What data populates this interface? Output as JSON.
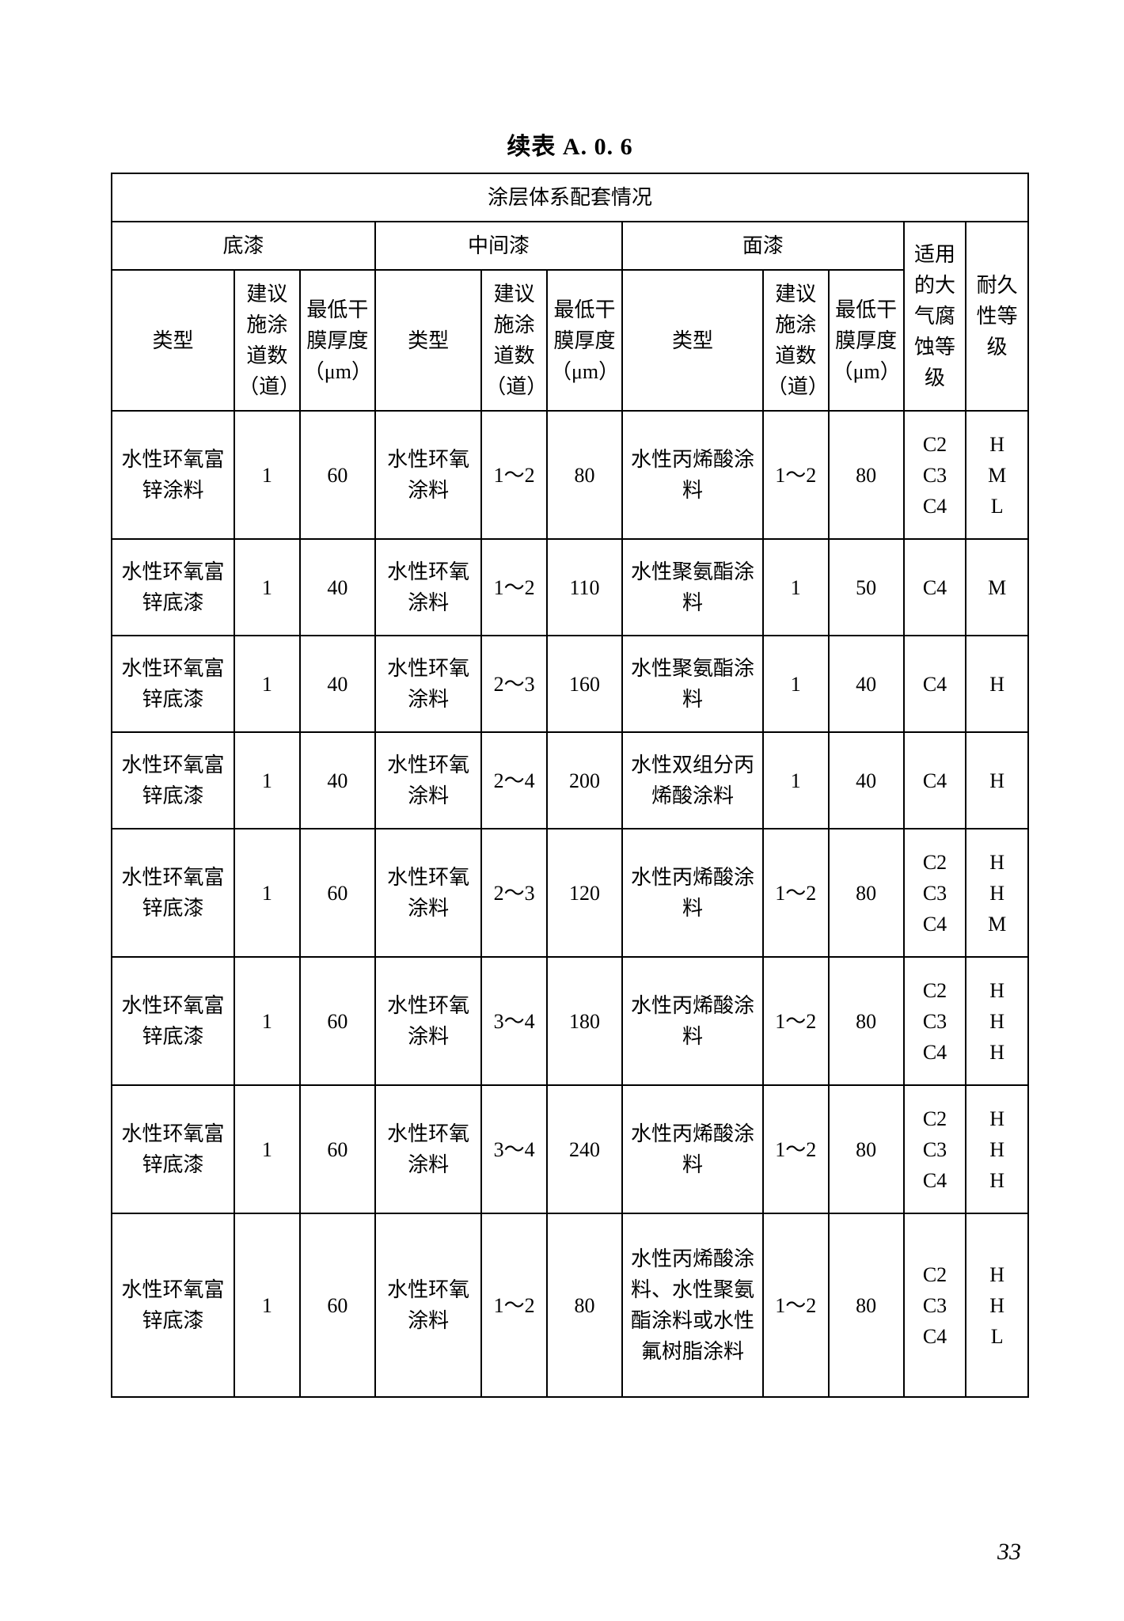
{
  "title": "续表 A. 0. 6",
  "page_number": "33",
  "table": {
    "caption": "涂层体系配套情况",
    "group_headers": {
      "primer": "底漆",
      "middle": "中间漆",
      "top": "面漆",
      "atm": "适用的大气腐蚀等级",
      "dur": "耐久性等级"
    },
    "sub_headers": {
      "type": "类型",
      "passes": "建议施涂道数（道）",
      "thick": "最低干膜厚度（μm）"
    },
    "rows": [
      {
        "primer_type": "水性环氧富锌涂料",
        "primer_passes": "1",
        "primer_thick": "60",
        "mid_type": "水性环氧涂料",
        "mid_passes": "1～2",
        "mid_thick": "80",
        "top_type": "水性丙烯酸涂料",
        "top_passes": "1～2",
        "top_thick": "80",
        "atm": "C2\nC3\nC4",
        "dur": "H\nM\nL"
      },
      {
        "primer_type": "水性环氧富锌底漆",
        "primer_passes": "1",
        "primer_thick": "40",
        "mid_type": "水性环氧涂料",
        "mid_passes": "1～2",
        "mid_thick": "110",
        "top_type": "水性聚氨酯涂料",
        "top_passes": "1",
        "top_thick": "50",
        "atm": "C4",
        "dur": "M"
      },
      {
        "primer_type": "水性环氧富锌底漆",
        "primer_passes": "1",
        "primer_thick": "40",
        "mid_type": "水性环氧涂料",
        "mid_passes": "2～3",
        "mid_thick": "160",
        "top_type": "水性聚氨酯涂料",
        "top_passes": "1",
        "top_thick": "40",
        "atm": "C4",
        "dur": "H"
      },
      {
        "primer_type": "水性环氧富锌底漆",
        "primer_passes": "1",
        "primer_thick": "40",
        "mid_type": "水性环氧涂料",
        "mid_passes": "2～4",
        "mid_thick": "200",
        "top_type": "水性双组分丙烯酸涂料",
        "top_passes": "1",
        "top_thick": "40",
        "atm": "C4",
        "dur": "H"
      },
      {
        "primer_type": "水性环氧富锌底漆",
        "primer_passes": "1",
        "primer_thick": "60",
        "mid_type": "水性环氧涂料",
        "mid_passes": "2～3",
        "mid_thick": "120",
        "top_type": "水性丙烯酸涂料",
        "top_passes": "1～2",
        "top_thick": "80",
        "atm": "C2\nC3\nC4",
        "dur": "H\nH\nM"
      },
      {
        "primer_type": "水性环氧富锌底漆",
        "primer_passes": "1",
        "primer_thick": "60",
        "mid_type": "水性环氧涂料",
        "mid_passes": "3～4",
        "mid_thick": "180",
        "top_type": "水性丙烯酸涂料",
        "top_passes": "1～2",
        "top_thick": "80",
        "atm": "C2\nC3\nC4",
        "dur": "H\nH\nH"
      },
      {
        "primer_type": "水性环氧富锌底漆",
        "primer_passes": "1",
        "primer_thick": "60",
        "mid_type": "水性环氧涂料",
        "mid_passes": "3～4",
        "mid_thick": "240",
        "top_type": "水性丙烯酸涂料",
        "top_passes": "1～2",
        "top_thick": "80",
        "atm": "C2\nC3\nC4",
        "dur": "H\nH\nH"
      },
      {
        "primer_type": "水性环氧富锌底漆",
        "primer_passes": "1",
        "primer_thick": "60",
        "mid_type": "水性环氧涂料",
        "mid_passes": "1～2",
        "mid_thick": "80",
        "top_type": "水性丙烯酸涂料、水性聚氨酯涂料或水性氟树脂涂料",
        "top_passes": "1～2",
        "top_thick": "80",
        "atm": "C2\nC3\nC4",
        "dur": "H\nH\nL"
      }
    ]
  }
}
